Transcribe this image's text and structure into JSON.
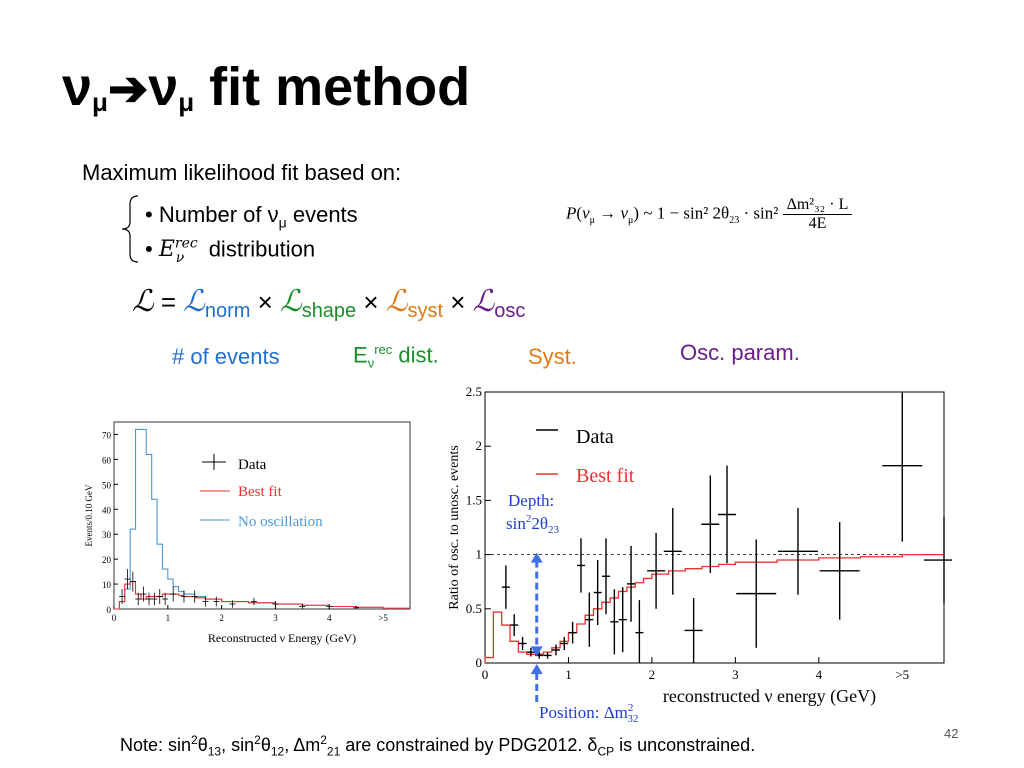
{
  "slide": {
    "title_v1": "ν",
    "title_mu1": "μ",
    "title_arrow": "➔",
    "title_v2": "ν",
    "title_mu2": "μ",
    "title_rest": " fit method",
    "subtitle": "Maximum likelihood fit based on:",
    "bullet1_prefix": "Number of ν",
    "bullet1_sub": "μ",
    "bullet1_suffix": " events",
    "bullet2_E": "E",
    "bullet2_sup": "rec",
    "bullet2_sub": "ν",
    "bullet2_suffix": " distribution",
    "formula": {
      "P": "P",
      "lhs_nu1": "ν",
      "lhs_mu1": "μ",
      "arrow": " → ",
      "lhs_nu2": "ν",
      "lhs_mu2": "μ",
      "rhs": " ~ 1 − sin² 2θ",
      "theta_sub": "23",
      "dot": " · sin² ",
      "num": "Δm²₃₂ · L",
      "den": "4E"
    },
    "likelihood": {
      "L": "ℒ",
      "eq": " = ",
      "times": " × ",
      "norm_sub": "norm",
      "shape_sub": "shape",
      "syst_sub": "syst",
      "osc_sub": "osc"
    },
    "labels": {
      "events": "# of events",
      "shape_E": "E",
      "shape_sub": "ν",
      "shape_sup": "rec",
      "shape_rest": " dist.",
      "syst": "Syst.",
      "osc": "Osc. param."
    },
    "note": {
      "p1": "Note: sin",
      "s1": "2",
      "t1": "θ",
      "b1": "13",
      "p2": ", sin",
      "s2": "2",
      "t2": "θ",
      "b2": "12",
      "p3": ",  Δm",
      "s3": "2",
      "b3": "21",
      "p4": "  are constrained by PDG2012. δ",
      "b4": "CP",
      "p5": " is unconstrained."
    },
    "page_number": "42"
  },
  "colors": {
    "fit": "#e8322e",
    "noosc": "#4a9ad6",
    "events": "#1f6fd0",
    "shape": "#1a8f2a",
    "syst": "#e07a14",
    "osc": "#6a1d8a",
    "annot": "#1e3fd0"
  },
  "chart_data": [
    {
      "type": "line",
      "xlabel": "Reconstructed ν Energy (GeV)",
      "ylabel": "Events/0.10 GeV",
      "xlim": [
        0,
        5.5
      ],
      "ylim": [
        0,
        75
      ],
      "xticks": [
        0,
        1,
        2,
        3,
        4
      ],
      "xtick_labels": [
        "0",
        "1",
        "2",
        "3",
        "4"
      ],
      "xtick_extra": ">5",
      "yticks": [
        0,
        10,
        20,
        30,
        40,
        50,
        60,
        70
      ],
      "legend": [
        "Data",
        "Best fit",
        "No oscillation"
      ],
      "legend_position": "top-right",
      "series": [
        {
          "name": "No oscillation",
          "style": "step",
          "x": [
            0,
            0.1,
            0.2,
            0.3,
            0.4,
            0.5,
            0.6,
            0.7,
            0.8,
            0.9,
            1.0,
            1.1,
            1.2,
            1.3,
            1.5,
            1.7,
            2.0,
            2.5,
            3.0,
            3.5,
            4.0,
            4.5,
            5.0,
            5.5
          ],
          "y": [
            0,
            3,
            8,
            32,
            72,
            72,
            62,
            44,
            26,
            16,
            12,
            9,
            7,
            6,
            5,
            4,
            3,
            2.5,
            2,
            1.5,
            1,
            0.7,
            0.3,
            0
          ]
        },
        {
          "name": "Best fit",
          "style": "step",
          "x": [
            0,
            0.1,
            0.2,
            0.3,
            0.4,
            0.5,
            0.6,
            0.7,
            0.8,
            0.9,
            1.0,
            1.1,
            1.2,
            1.3,
            1.5,
            1.7,
            2.0,
            2.5,
            3.0,
            3.5,
            4.0,
            4.5,
            5.0,
            5.5
          ],
          "y": [
            0,
            3,
            10,
            11,
            6,
            4,
            5,
            5,
            5,
            6,
            6,
            6,
            5.5,
            5,
            4.5,
            4,
            3,
            2.5,
            2,
            1.5,
            1,
            0.7,
            0.3,
            0
          ]
        },
        {
          "name": "Data",
          "style": "points",
          "x": [
            0.15,
            0.25,
            0.35,
            0.45,
            0.55,
            0.65,
            0.75,
            0.85,
            0.95,
            1.1,
            1.3,
            1.5,
            1.7,
            1.9,
            2.2,
            2.6,
            3.0,
            3.5,
            4.0,
            4.5
          ],
          "y": [
            5,
            12,
            11,
            4,
            6,
            4,
            4,
            5,
            4,
            6,
            5,
            5,
            3,
            3,
            2,
            3,
            2,
            1,
            1,
            0.5
          ],
          "err": [
            3,
            4,
            4,
            2.5,
            3,
            2.5,
            2.5,
            3,
            2.5,
            3,
            2.5,
            2.5,
            2,
            2,
            1.5,
            1.5,
            1.2,
            1,
            1,
            0.8
          ]
        }
      ]
    },
    {
      "type": "scatter",
      "xlabel": "reconstructed ν energy (GeV)",
      "ylabel": "Ratio of osc. to unosc. events",
      "xlim": [
        0,
        5.5
      ],
      "ylim": [
        0,
        2.5
      ],
      "xticks": [
        0,
        1,
        2,
        3,
        4
      ],
      "xtick_labels": [
        "0",
        "1",
        "2",
        "3",
        "4"
      ],
      "xtick_extra": ">5",
      "yticks": [
        0,
        0.5,
        1,
        1.5,
        2,
        2.5
      ],
      "ytick_labels": [
        "0",
        "0.5",
        "1",
        "1.5",
        "2",
        "2.5"
      ],
      "reference_line": 1,
      "legend": [
        "Data",
        "Best fit"
      ],
      "legend_position": "top-left",
      "series": [
        {
          "name": "Best fit",
          "style": "step",
          "x": [
            0,
            0.1,
            0.2,
            0.3,
            0.4,
            0.5,
            0.6,
            0.7,
            0.8,
            0.9,
            1.0,
            1.1,
            1.2,
            1.3,
            1.4,
            1.5,
            1.6,
            1.7,
            1.8,
            1.9,
            2.0,
            2.2,
            2.4,
            2.6,
            2.8,
            3.0,
            3.5,
            4.0,
            4.5,
            5.0,
            5.5
          ],
          "y": [
            0.05,
            0.47,
            0.35,
            0.2,
            0.1,
            0.08,
            0.08,
            0.1,
            0.14,
            0.2,
            0.28,
            0.36,
            0.44,
            0.5,
            0.56,
            0.6,
            0.66,
            0.7,
            0.74,
            0.78,
            0.82,
            0.85,
            0.87,
            0.89,
            0.91,
            0.93,
            0.95,
            0.97,
            0.98,
            1.0,
            1.01
          ]
        },
        {
          "name": "Data",
          "style": "points",
          "x": [
            0.25,
            0.35,
            0.45,
            0.55,
            0.65,
            0.75,
            0.85,
            0.95,
            1.05,
            1.15,
            1.25,
            1.35,
            1.45,
            1.55,
            1.65,
            1.75,
            1.85,
            2.05,
            2.25,
            2.5,
            2.7,
            2.9,
            3.25,
            3.75,
            4.25,
            5.0,
            5.5
          ],
          "y": [
            0.7,
            0.35,
            0.18,
            0.1,
            0.07,
            0.07,
            0.12,
            0.18,
            0.28,
            0.9,
            0.4,
            0.65,
            0.8,
            0.38,
            0.4,
            0.73,
            0.28,
            0.85,
            1.03,
            0.3,
            1.28,
            1.37,
            0.64,
            1.03,
            0.85,
            1.82,
            0.95
          ],
          "err": [
            0.2,
            0.1,
            0.06,
            0.04,
            0.03,
            0.03,
            0.05,
            0.06,
            0.1,
            0.25,
            0.25,
            0.3,
            0.35,
            0.3,
            0.3,
            0.35,
            0.3,
            0.35,
            0.4,
            0.3,
            0.45,
            0.45,
            0.5,
            0.4,
            0.45,
            0.7,
            0.4
          ]
        }
      ],
      "annotations": {
        "depth_label": "Depth:",
        "depth_expr_sin": "sin",
        "depth_expr_sup": "2",
        "depth_expr_2t": "2θ",
        "depth_expr_sub": "23",
        "position_label": "Position: Δm",
        "position_sup": "2",
        "position_sub": "32"
      }
    }
  ]
}
